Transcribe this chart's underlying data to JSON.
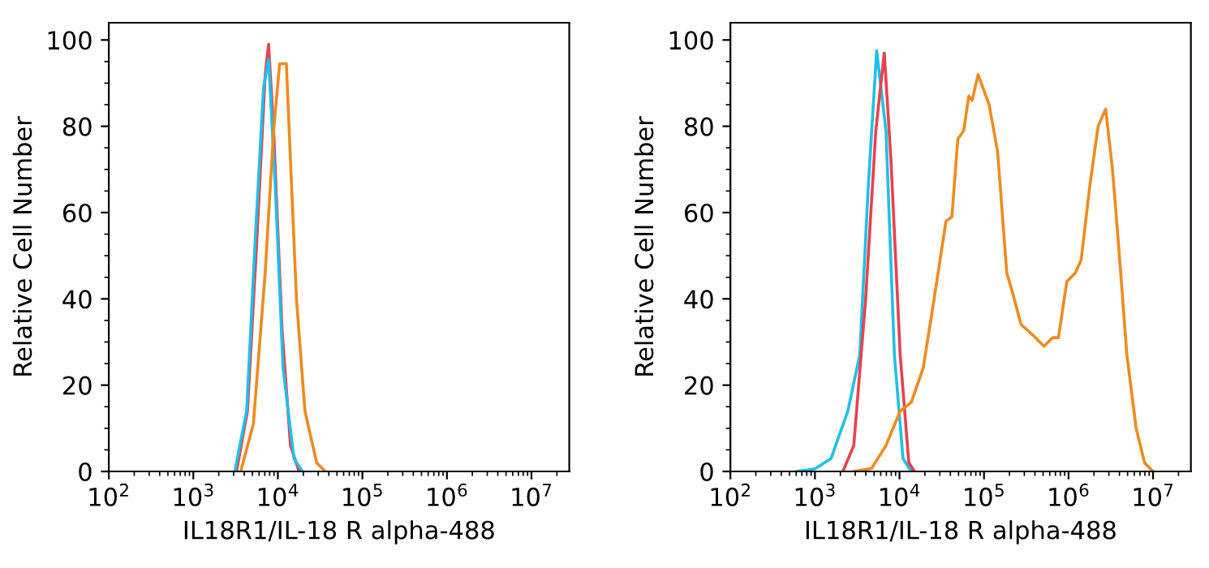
{
  "chart_data": [
    {
      "type": "line",
      "xlabel": "IL18R1/IL-18 R alpha-488",
      "ylabel": "Relative Cell Number",
      "log": "x",
      "grid": false,
      "legend": false,
      "xlim": [
        100,
        28000000
      ],
      "ylim": [
        0,
        104
      ],
      "xticks": [
        {
          "value": 100,
          "label": "10$^{2}$"
        },
        {
          "value": 1000,
          "label": "10$^{3}$"
        },
        {
          "value": 10000,
          "label": "10$^{4}$"
        },
        {
          "value": 100000,
          "label": "10$^{5}$"
        },
        {
          "value": 1000000,
          "label": "10$^{6}$"
        },
        {
          "value": 10000000,
          "label": "10$^{7}$"
        }
      ],
      "yticks": [
        0,
        20,
        40,
        60,
        80,
        100
      ],
      "series": [
        {
          "color": "#e8414f",
          "x": [
            3240,
            4370,
            5620,
            7080,
            7760,
            8910,
            11200,
            14100,
            17800
          ],
          "values": [
            0,
            14,
            53,
            92,
            99,
            79,
            33,
            6,
            0
          ]
        },
        {
          "color": "#1fc0e8",
          "x": [
            3090,
            4270,
            5370,
            6760,
            7760,
            9330,
            11500,
            15500,
            19500
          ],
          "values": [
            0,
            14,
            53,
            89,
            95.5,
            66,
            24,
            3,
            0
          ]
        },
        {
          "color": "#f08a1e",
          "x": [
            3630,
            5130,
            7080,
            8910,
            10500,
            12600,
            14100,
            16600,
            20900,
            28800,
            36300
          ],
          "values": [
            0,
            11,
            46,
            79,
            94.5,
            94.5,
            72,
            40,
            14,
            2,
            0
          ]
        }
      ]
    },
    {
      "type": "line",
      "xlabel": "IL18R1/IL-18 R alpha-488",
      "ylabel": "Relative Cell Number",
      "log": "x",
      "grid": false,
      "legend": false,
      "xlim": [
        100,
        28000000
      ],
      "ylim": [
        0,
        104
      ],
      "xticks": [
        {
          "value": 100,
          "label": "10$^{2}$"
        },
        {
          "value": 1000,
          "label": "10$^{3}$"
        },
        {
          "value": 10000,
          "label": "10$^{4}$"
        },
        {
          "value": 100000,
          "label": "10$^{5}$"
        },
        {
          "value": 1000000,
          "label": "10$^{6}$"
        },
        {
          "value": 10000000,
          "label": "10$^{7}$"
        }
      ],
      "yticks": [
        0,
        20,
        40,
        60,
        80,
        100
      ],
      "series": [
        {
          "color": "#1fc0e8",
          "x": [
            603,
            1000,
            1550,
            2450,
            3390,
            4270,
            5370,
            6920,
            8710,
            11000,
            13800
          ],
          "values": [
            0,
            0.6,
            3,
            14,
            27,
            66,
            97.5,
            79,
            27,
            3,
            0
          ]
        },
        {
          "color": "#e8414f",
          "x": [
            2140,
            2880,
            3980,
            5250,
            6610,
            7940,
            10200,
            12900,
            15100
          ],
          "values": [
            0,
            6,
            40,
            79,
            97,
            72,
            27,
            2,
            0
          ]
        },
        {
          "color": "#f08a1e",
          "x": [
            2880,
            4680,
            6920,
            10200,
            13800,
            19100,
            25700,
            35500,
            41700,
            49000,
            57500,
            66100,
            72400,
            85100,
            115000,
            145000,
            186000,
            214000,
            275000,
            316000,
            407000,
            513000,
            646000,
            759000,
            955000,
            1200000,
            1410000,
            1780000,
            2240000,
            2750000,
            3310000,
            3890000,
            4900000,
            6310000,
            7940000,
            10000000
          ],
          "values": [
            0,
            0.7,
            6,
            14,
            16,
            24,
            40,
            58,
            59,
            77,
            79,
            87,
            86,
            92,
            85,
            74,
            46,
            42,
            34,
            33,
            31,
            29,
            31,
            31,
            44,
            46,
            49,
            66,
            80,
            84,
            70,
            53,
            27,
            10,
            2,
            0
          ]
        }
      ]
    }
  ]
}
